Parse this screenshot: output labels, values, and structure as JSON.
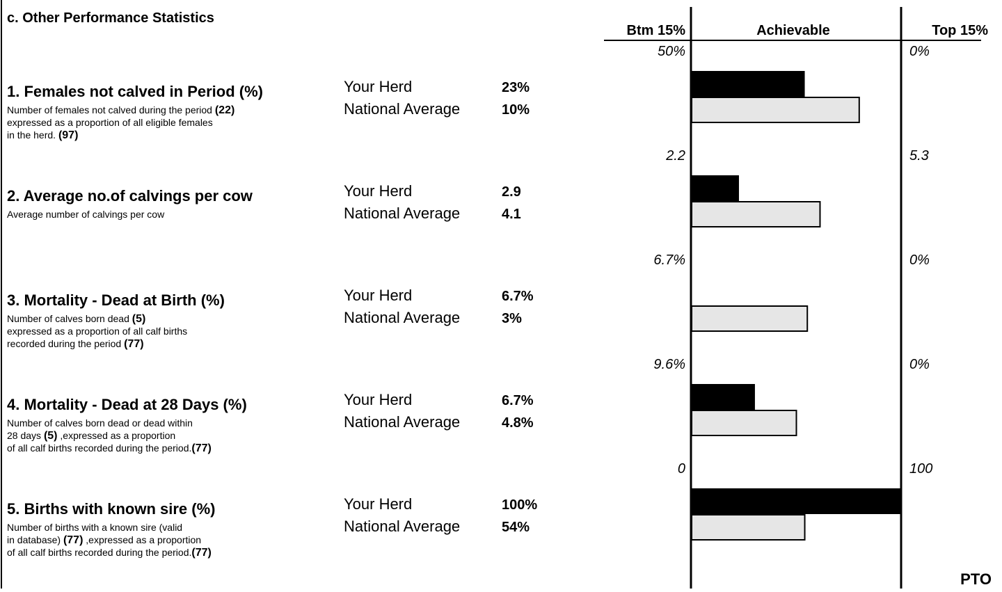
{
  "heading": "c. Other Performance Statistics",
  "columns": {
    "bottom": "Btm 15%",
    "middle": "Achievable",
    "top": "Top 15%"
  },
  "row_labels": {
    "your_herd": "Your Herd",
    "national": "National Average"
  },
  "items": [
    {
      "title": "1. Females not calved in Period (%)",
      "description": [
        [
          {
            "text": "Number of females not calved during the period "
          },
          {
            "text": "(22)",
            "bold": true
          }
        ],
        [
          {
            "text": "expressed as a proportion of all eligible females"
          }
        ],
        [
          {
            "text": "in the herd. "
          },
          {
            "text": "(97)",
            "bold": true
          }
        ]
      ],
      "your_herd": {
        "value": 23,
        "label": "23%"
      },
      "national": {
        "value": 10,
        "label": "10%"
      },
      "scale": [
        {
          "value": 50,
          "label": "50%"
        },
        {
          "value": 0,
          "label": "0%"
        }
      ]
    },
    {
      "title": "2. Average no.of calvings per cow",
      "description": [
        [
          {
            "text": "Average number of calvings per cow"
          }
        ]
      ],
      "your_herd": 2.9,
      "national": 4.1,
      "scale": [
        2.2,
        5.3
      ]
    },
    {
      "title": "3. Mortality - Dead at Birth (%)",
      "description": [
        [
          {
            "text": "Number of calves born dead "
          },
          {
            "text": "(5)",
            "bold": true
          }
        ],
        [
          {
            "text": "expressed as a proportion of all calf births"
          }
        ],
        [
          {
            "text": "recorded during the period "
          },
          {
            "text": "(77)",
            "bold": true
          }
        ]
      ],
      "your_herd": {
        "value": 6.7,
        "label": "6.7%"
      },
      "national": {
        "value": 3,
        "label": "3%"
      },
      "scale": [
        {
          "value": 6.7,
          "label": "6.7%"
        },
        {
          "value": 0,
          "label": "0%"
        }
      ]
    },
    {
      "title": "4. Mortality - Dead at 28 Days (%)",
      "description": [
        [
          {
            "text": "Number of calves born dead or dead within"
          }
        ],
        [
          {
            "text": "28 days "
          },
          {
            "text": "(5)",
            "bold": true
          },
          {
            "text": " ,expressed as a proportion"
          }
        ],
        [
          {
            "text": "of all calf births recorded during the period."
          },
          {
            "text": "(77)",
            "bold": true
          }
        ]
      ],
      "your_herd": {
        "value": 6.7,
        "label": "6.7%"
      },
      "national": {
        "value": 4.8,
        "label": "4.8%"
      },
      "scale": [
        {
          "value": 9.6,
          "label": "9.6%"
        },
        {
          "value": 0,
          "label": "0%"
        }
      ]
    },
    {
      "title": "5. Births with known sire (%)",
      "description": [
        [
          {
            "text": "Number of births with a known sire (valid"
          }
        ],
        [
          {
            "text": "in database) "
          },
          {
            "text": "(77)",
            "bold": true
          },
          {
            "text": " ,expressed as a proportion"
          }
        ],
        [
          {
            "text": "of all calf births recorded during the period."
          },
          {
            "text": "(77)",
            "bold": true
          }
        ]
      ],
      "your_herd": {
        "value": 100,
        "label": "100%"
      },
      "national": {
        "value": 54,
        "label": "54%"
      },
      "scale": [
        0,
        100
      ]
    }
  ],
  "footer": "PTO"
}
